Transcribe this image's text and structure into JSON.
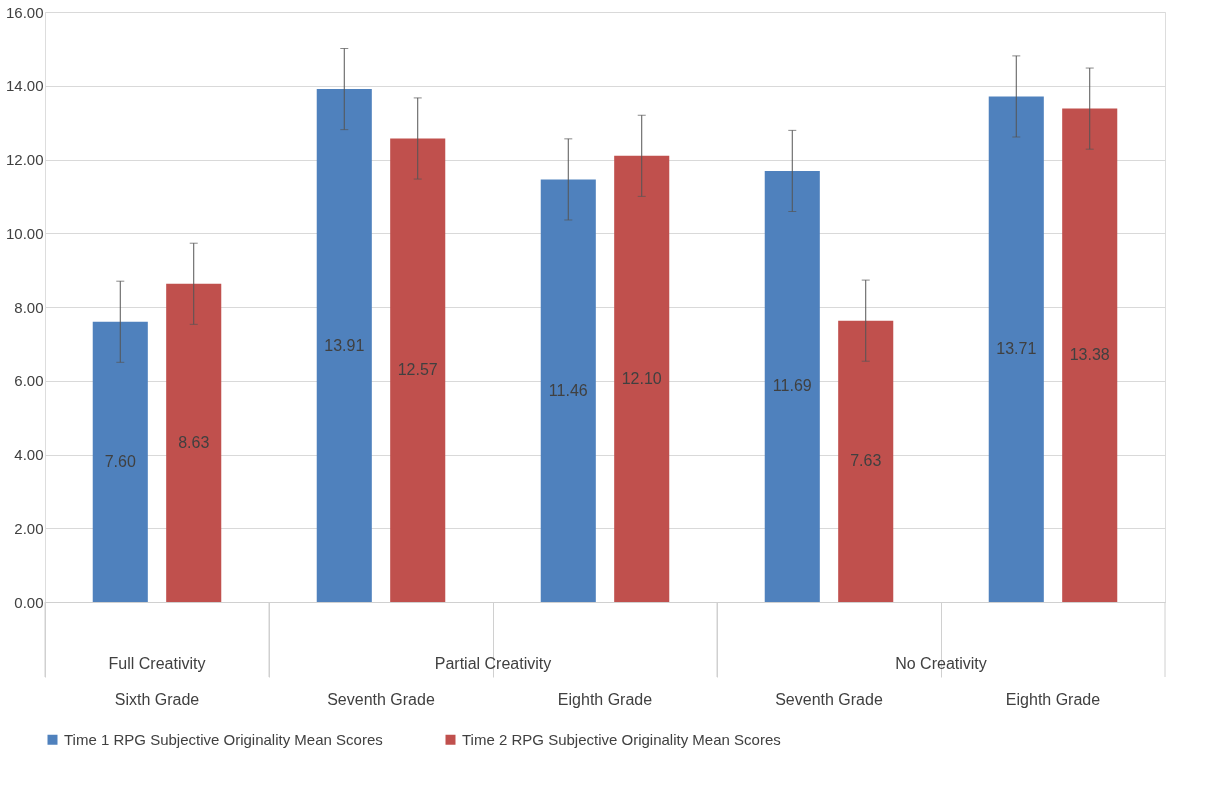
{
  "chart_data": {
    "type": "bar",
    "categories": [
      "Sixth Grade",
      "Seventh Grade",
      "Eighth Grade",
      "Seventh Grade",
      "Eighth Grade"
    ],
    "annotations": [
      "Full Creativity",
      "Partial Creativity",
      "No Creativity"
    ],
    "series": [
      {
        "name": "Time 1 RPG Subjective Originality Mean Scores",
        "color": "#4f81bd",
        "values": [
          7.6,
          13.91,
          11.46,
          11.69,
          13.71
        ],
        "errors": [
          1.1,
          1.1,
          1.1,
          1.1,
          1.1
        ],
        "value_labels": [
          "7.60",
          "13.91",
          "11.46",
          "11.69",
          "13.71"
        ]
      },
      {
        "name": "Time 2 RPG Subjective Originality Mean Scores",
        "color": "#c0504d",
        "values": [
          8.63,
          12.57,
          12.1,
          7.63,
          13.38
        ],
        "errors": [
          1.1,
          1.1,
          1.1,
          1.1,
          1.1
        ],
        "value_labels": [
          "8.63",
          "12.57",
          "12.10",
          "7.63",
          "13.38"
        ]
      }
    ],
    "ylim": [
      0,
      16
    ],
    "yticks": [
      {
        "value": 0,
        "label": "0.00"
      },
      {
        "value": 2,
        "label": "2.00"
      },
      {
        "value": 4,
        "label": "4.00"
      },
      {
        "value": 6,
        "label": "6.00"
      },
      {
        "value": 8,
        "label": "8.00"
      },
      {
        "value": 10,
        "label": "10.00"
      },
      {
        "value": 12,
        "label": "12.00"
      },
      {
        "value": 14,
        "label": "14.00"
      },
      {
        "value": 16,
        "label": "16.00"
      }
    ],
    "grid": "y",
    "legend": "bottom"
  }
}
